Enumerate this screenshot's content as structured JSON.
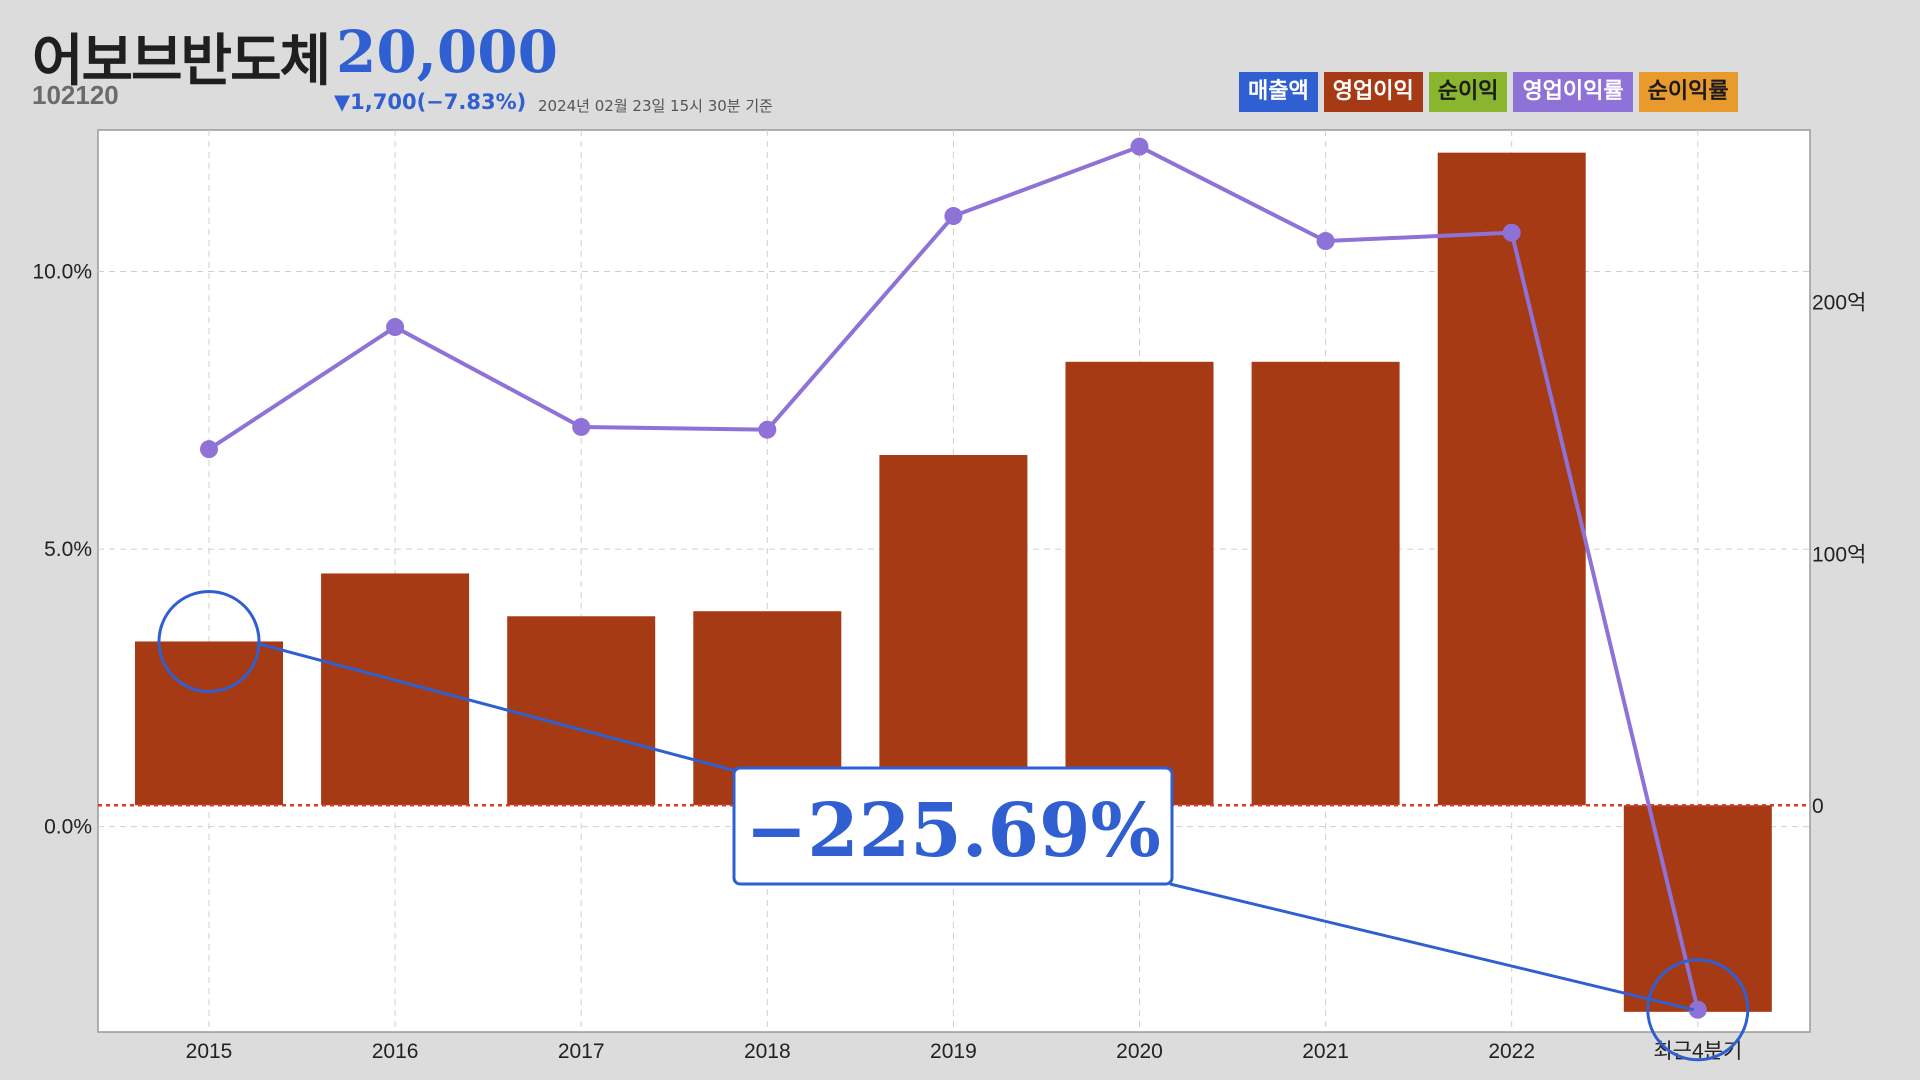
{
  "header": {
    "stock_name": "어보브반도체",
    "price": "20,000",
    "code": "102120",
    "change": "▼1,700(−7.83%)",
    "as_of": "2024년 02월 23일 15시 30분 기준"
  },
  "legend": [
    {
      "label": "매출액",
      "color": "#2f5fd0",
      "icon": "legend-swatch"
    },
    {
      "label": "영업이익",
      "color": "#a63a14",
      "icon": "legend-swatch"
    },
    {
      "label": "순이익",
      "color": "#8ab52f",
      "icon": "legend-swatch"
    },
    {
      "label": "영업이익률",
      "color": "#8f72d8",
      "icon": "legend-swatch"
    },
    {
      "label": "순이익률",
      "color": "#e99a2c",
      "icon": "legend-swatch"
    }
  ],
  "callout": {
    "text": "−225.69%"
  },
  "chart_data": {
    "type": "bar",
    "categories": [
      "2015",
      "2016",
      "2017",
      "2018",
      "2019",
      "2020",
      "2021",
      "2022",
      "최근4분기"
    ],
    "series": [
      {
        "name": "영업이익",
        "axis": "right",
        "type": "bar",
        "color": "#a63a14",
        "values": [
          65,
          92,
          75,
          77,
          139,
          176,
          176,
          259,
          -82
        ]
      },
      {
        "name": "영업이익률",
        "axis": "left",
        "type": "line",
        "color": "#8f72d8",
        "values": [
          6.8,
          9.0,
          7.2,
          7.15,
          11.0,
          12.25,
          10.55,
          10.7,
          -3.3
        ]
      }
    ],
    "left_axis": {
      "ticks": [
        0,
        5,
        10
      ],
      "tick_labels": [
        "0.0%",
        "5.0%",
        "10.0%"
      ],
      "ylim": [
        -3.7,
        12.55
      ]
    },
    "right_axis": {
      "ticks": [
        0,
        100,
        200
      ],
      "tick_labels": [
        "0",
        "100억",
        "200억"
      ],
      "ylim": [
        -90,
        268
      ]
    },
    "grid": true,
    "zero_line_color": "#d43d2a",
    "annotation": {
      "text": "−225.69%",
      "from_category": "2015",
      "to_category": "최근4분기"
    }
  }
}
